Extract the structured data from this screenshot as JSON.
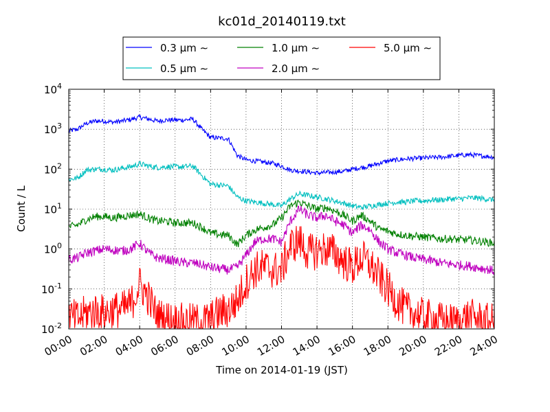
{
  "chart_data": {
    "type": "line",
    "title": "kc01d_20140119.txt",
    "xlabel": "Time on 2014-01-19 (JST)",
    "ylabel": "Count / L",
    "y_scale": "log",
    "xlim": [
      "00:00",
      "24:00"
    ],
    "ylim": [
      0.01,
      10000
    ],
    "grid": true,
    "legend_placement": "top",
    "x_tick_labels": [
      "00:00",
      "02:00",
      "04:00",
      "06:00",
      "08:00",
      "10:00",
      "12:00",
      "14:00",
      "16:00",
      "18:00",
      "20:00",
      "22:00",
      "24:00"
    ],
    "y_tick_labels": [
      {
        "base": "10",
        "exp": "-2"
      },
      {
        "base": "10",
        "exp": "-1"
      },
      {
        "base": "10",
        "exp": "0"
      },
      {
        "base": "10",
        "exp": "1"
      },
      {
        "base": "10",
        "exp": "2"
      },
      {
        "base": "10",
        "exp": "3"
      },
      {
        "base": "10",
        "exp": "4"
      }
    ],
    "x_hours": [
      0,
      0.5,
      1,
      1.5,
      2,
      2.5,
      3,
      3.5,
      4,
      4.5,
      5,
      5.5,
      6,
      6.5,
      7,
      7.5,
      8,
      8.5,
      9,
      9.5,
      10,
      10.5,
      11,
      11.5,
      12,
      12.5,
      13,
      13.5,
      14,
      14.5,
      15,
      15.5,
      16,
      16.5,
      17,
      17.5,
      18,
      18.5,
      19,
      19.5,
      20,
      20.5,
      21,
      21.5,
      22,
      22.5,
      23,
      23.5,
      24
    ],
    "series": [
      {
        "name": "0.3 μm ∼",
        "color": "#0000ff",
        "noise": 0.03,
        "values": [
          900,
          1000,
          1400,
          1600,
          1600,
          1500,
          1600,
          1750,
          2000,
          1800,
          1600,
          1700,
          1700,
          1700,
          1800,
          1000,
          620,
          600,
          580,
          220,
          170,
          160,
          150,
          140,
          120,
          95,
          90,
          85,
          80,
          82,
          85,
          88,
          100,
          110,
          120,
          140,
          160,
          170,
          180,
          185,
          190,
          195,
          200,
          210,
          220,
          230,
          220,
          210,
          200
        ]
      },
      {
        "name": "0.5 μm ∼",
        "color": "#00bfbf",
        "noise": 0.035,
        "values": [
          55,
          60,
          95,
          100,
          100,
          95,
          105,
          115,
          135,
          120,
          110,
          115,
          115,
          115,
          120,
          70,
          42,
          40,
          38,
          20,
          16,
          15,
          14,
          13,
          12,
          18,
          24,
          22,
          20,
          18,
          16,
          14,
          12,
          11,
          12,
          13,
          14,
          15,
          15,
          16,
          16,
          17,
          17,
          18,
          18,
          19,
          19,
          18,
          17
        ]
      },
      {
        "name": "1.0 μm ∼",
        "color": "#008000",
        "noise": 0.05,
        "values": [
          3.5,
          4.0,
          5.5,
          6.5,
          6.5,
          6.0,
          6.5,
          7.0,
          7.5,
          6.0,
          5.0,
          5.0,
          4.5,
          4.5,
          4.5,
          3.5,
          2.5,
          2.3,
          2.2,
          1.3,
          2.2,
          3.0,
          3.5,
          4.0,
          6.0,
          12,
          15,
          12,
          10,
          11,
          9,
          7,
          5,
          7,
          5,
          3.2,
          2.8,
          2.4,
          2.2,
          2.1,
          2.0,
          1.9,
          1.8,
          1.8,
          1.7,
          1.7,
          1.6,
          1.5,
          1.4
        ]
      },
      {
        "name": "2.0 μm ∼",
        "color": "#bf00bf",
        "noise": 0.06,
        "values": [
          0.55,
          0.6,
          0.8,
          0.9,
          1.0,
          0.95,
          0.9,
          1.0,
          1.4,
          0.8,
          0.6,
          0.55,
          0.5,
          0.45,
          0.45,
          0.4,
          0.35,
          0.32,
          0.3,
          0.35,
          0.7,
          1.5,
          1.8,
          1.8,
          1.5,
          5,
          10,
          7,
          6,
          7,
          5,
          4,
          2.5,
          4,
          3,
          1.5,
          1.0,
          0.8,
          0.7,
          0.6,
          0.55,
          0.5,
          0.45,
          0.42,
          0.4,
          0.38,
          0.35,
          0.32,
          0.28
        ]
      },
      {
        "name": "5.0 μm ∼",
        "color": "#ff0000",
        "noise": 0.12,
        "values": [
          0.02,
          0.018,
          0.025,
          0.028,
          0.025,
          0.03,
          0.03,
          0.04,
          0.13,
          0.06,
          0.02,
          0.018,
          0.016,
          0.015,
          0.015,
          0.015,
          0.018,
          0.025,
          0.03,
          0.05,
          0.15,
          0.3,
          0.35,
          0.3,
          0.3,
          1.2,
          1.6,
          0.8,
          0.9,
          1.0,
          0.8,
          0.5,
          0.35,
          0.6,
          0.4,
          0.2,
          0.1,
          0.05,
          0.03,
          0.025,
          0.02,
          0.018,
          0.016,
          0.015,
          0.015,
          0.02,
          0.018,
          0.015,
          0.015
        ]
      }
    ]
  }
}
